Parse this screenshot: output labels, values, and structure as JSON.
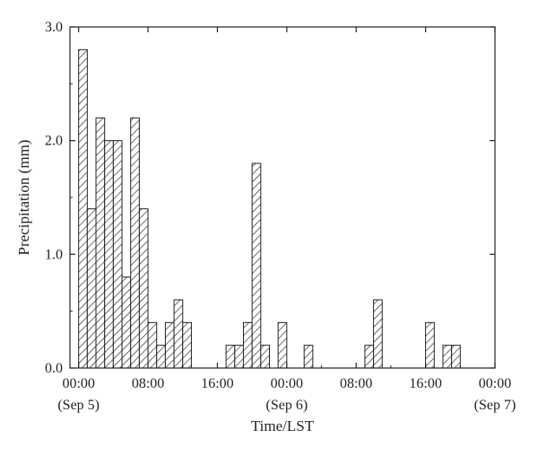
{
  "chart_data": {
    "type": "bar",
    "xlabel": "Time/LST",
    "ylabel": "Precipitation (mm)",
    "ylim": [
      0,
      3.0
    ],
    "y_ticks": [
      "0.0",
      "1.0",
      "2.0",
      "3.0"
    ],
    "x_ticks": [
      {
        "time": "00:00",
        "date": "(Sep 5)"
      },
      {
        "time": "08:00",
        "date": ""
      },
      {
        "time": "16:00",
        "date": ""
      },
      {
        "time": "00:00",
        "date": "(Sep 6)"
      },
      {
        "time": "08:00",
        "date": ""
      },
      {
        "time": "16:00",
        "date": ""
      },
      {
        "time": "00:00",
        "date": "(Sep 7)"
      }
    ],
    "hours_per_bar": 1,
    "x_range_hours": [
      -1,
      48
    ],
    "bar_fill": "hatched",
    "bar_color": "#222222",
    "bars": [
      {
        "hour": 0,
        "value": 2.8
      },
      {
        "hour": 1,
        "value": 1.4
      },
      {
        "hour": 2,
        "value": 2.2
      },
      {
        "hour": 3,
        "value": 2.0
      },
      {
        "hour": 4,
        "value": 2.0
      },
      {
        "hour": 5,
        "value": 0.8
      },
      {
        "hour": 6,
        "value": 2.2
      },
      {
        "hour": 7,
        "value": 1.4
      },
      {
        "hour": 8,
        "value": 0.4
      },
      {
        "hour": 9,
        "value": 0.2
      },
      {
        "hour": 10,
        "value": 0.4
      },
      {
        "hour": 11,
        "value": 0.6
      },
      {
        "hour": 12,
        "value": 0.4
      },
      {
        "hour": 17,
        "value": 0.2
      },
      {
        "hour": 18,
        "value": 0.2
      },
      {
        "hour": 19,
        "value": 0.4
      },
      {
        "hour": 20,
        "value": 1.8
      },
      {
        "hour": 21,
        "value": 0.2
      },
      {
        "hour": 23,
        "value": 0.4
      },
      {
        "hour": 26,
        "value": 0.2
      },
      {
        "hour": 33,
        "value": 0.2
      },
      {
        "hour": 34,
        "value": 0.6
      },
      {
        "hour": 40,
        "value": 0.4
      },
      {
        "hour": 42,
        "value": 0.2
      },
      {
        "hour": 43,
        "value": 0.2
      }
    ]
  }
}
